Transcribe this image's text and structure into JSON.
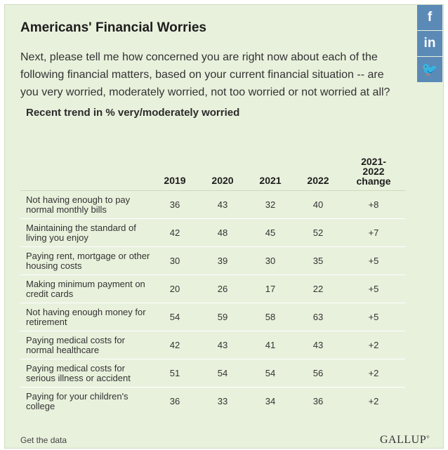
{
  "title": "Americans' Financial Worries",
  "question": "Next, please tell me how concerned you are right now about each of the following financial matters, based on your current financial situation -- are you very worried, moderately worried, not too worried or not worried at all?",
  "subtitle": "Recent trend in % very/moderately worried",
  "social": [
    {
      "icon": "facebook-icon",
      "glyph": "f"
    },
    {
      "icon": "linkedin-icon",
      "glyph": "in"
    },
    {
      "icon": "twitter-icon",
      "glyph": "🐦"
    }
  ],
  "footer": {
    "get_data": "Get the data",
    "logo": "GALLUP"
  },
  "colors": {
    "panel_bg": "#e8f1dc",
    "social_bg": "#5b8ab7",
    "row_divider": "#ffffff"
  },
  "chart_data": {
    "type": "table",
    "columns": [
      "2019",
      "2020",
      "2021",
      "2022",
      "2021-2022 change"
    ],
    "rows": [
      {
        "label": "Not having enough to pay normal monthly bills",
        "values": [
          "36",
          "43",
          "32",
          "40",
          "+8"
        ]
      },
      {
        "label": "Maintaining the standard of living you enjoy",
        "values": [
          "42",
          "48",
          "45",
          "52",
          "+7"
        ]
      },
      {
        "label": "Paying rent, mortgage or other housing costs",
        "values": [
          "30",
          "39",
          "30",
          "35",
          "+5"
        ]
      },
      {
        "label": "Making minimum payment on credit cards",
        "values": [
          "20",
          "26",
          "17",
          "22",
          "+5"
        ]
      },
      {
        "label": "Not having enough money for retirement",
        "values": [
          "54",
          "59",
          "58",
          "63",
          "+5"
        ]
      },
      {
        "label": "Paying medical costs for normal healthcare",
        "values": [
          "42",
          "43",
          "41",
          "43",
          "+2"
        ]
      },
      {
        "label": "Paying medical costs for serious illness or accident",
        "values": [
          "51",
          "54",
          "54",
          "56",
          "+2"
        ]
      },
      {
        "label": "Paying for your children's college",
        "values": [
          "36",
          "33",
          "34",
          "36",
          "+2"
        ]
      }
    ]
  }
}
